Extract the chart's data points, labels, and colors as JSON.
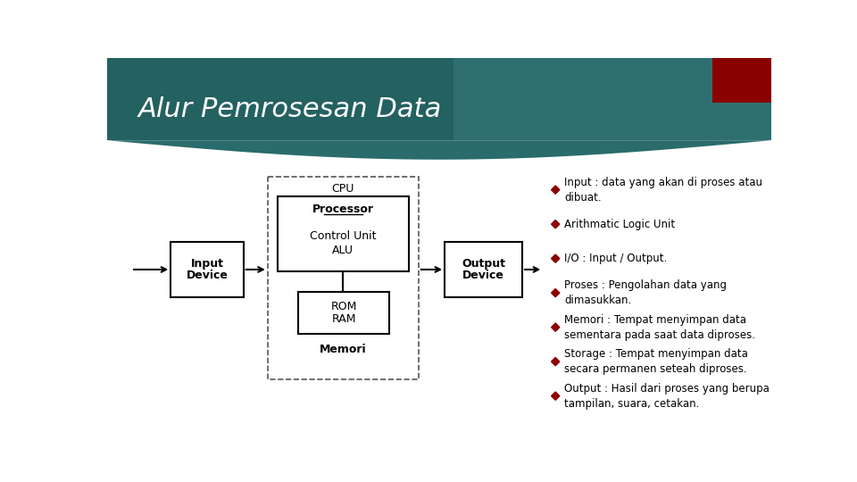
{
  "title": "Alur Pemrosesan Data",
  "title_color": "#FFFFFF",
  "title_fontsize": 22,
  "bg_color": "#FFFFFF",
  "header_teal": "#2a6b6b",
  "header_dark": "#1e5555",
  "header_light": "#3a8080",
  "red_box_color": "#8B0000",
  "bullet_color": "#8B0000",
  "bullet_points": [
    "Input : data yang akan di proses atau\ndibuat.",
    "Arithmatic Logic Unit",
    "I/O : Input / Output.",
    "Proses : Pengolahan data yang\ndimasukkan.",
    "Memori : Tempat menyimpan data\nsementara pada saat data diproses.",
    "Storage : Tempat menyimpan data\nsecara permanen seteah diproses.",
    "Output : Hasil dari proses yang berupa\ntampilan, suara, cetakan."
  ],
  "cpu_dashed_color": "#555555"
}
